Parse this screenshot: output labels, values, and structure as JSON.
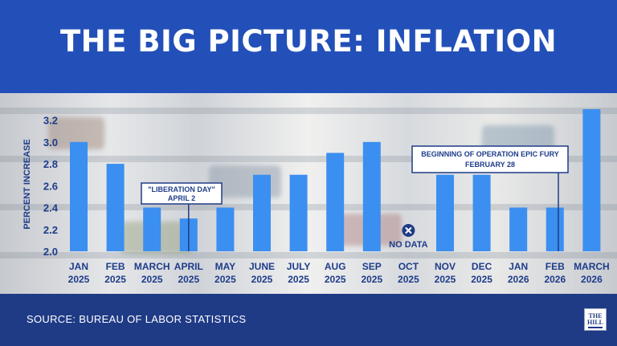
{
  "header": {
    "title": "THE BIG PICTURE: INFLATION"
  },
  "footer": {
    "source": "SOURCE: BUREAU OF LABOR STATISTICS",
    "logo": "THE HILL"
  },
  "colors": {
    "header": "#2350b8",
    "footer": "#1f3b86",
    "bar": "#3b8ff0",
    "text": "#1e3c8a"
  },
  "chart_data": {
    "type": "bar",
    "title": "",
    "ylabel": "PERCENT INCREASE",
    "xlabel": "",
    "ylim": [
      2.0,
      3.3
    ],
    "yticks": [
      "2.0",
      "2.2",
      "2.4",
      "2.6",
      "2.8",
      "3.0",
      "3.2"
    ],
    "grid": false,
    "categories": [
      [
        "JAN",
        "2025"
      ],
      [
        "FEB",
        "2025"
      ],
      [
        "MARCH",
        "2025"
      ],
      [
        "APRIL",
        "2025"
      ],
      [
        "MAY",
        "2025"
      ],
      [
        "JUNE",
        "2025"
      ],
      [
        "JULY",
        "2025"
      ],
      [
        "AUG",
        "2025"
      ],
      [
        "SEP",
        "2025"
      ],
      [
        "OCT",
        "2025"
      ],
      [
        "NOV",
        "2025"
      ],
      [
        "DEC",
        "2025"
      ],
      [
        "JAN",
        "2026"
      ],
      [
        "FEB",
        "2026"
      ],
      [
        "MARCH",
        "2026"
      ]
    ],
    "values": [
      3.0,
      2.8,
      2.4,
      2.3,
      2.4,
      2.7,
      2.7,
      2.9,
      3.0,
      null,
      2.7,
      2.7,
      2.4,
      2.4,
      3.3
    ],
    "annotations": [
      {
        "category_index": 3,
        "lines": [
          "\"LIBERATION DAY\"",
          "APRIL 2"
        ]
      },
      {
        "category_index": 13,
        "lines": [
          "BEGINNING OF OPERATION EPIC FURY",
          "FEBRUARY 28"
        ]
      }
    ],
    "missing": {
      "category_index": 9,
      "label": "NO DATA"
    }
  }
}
